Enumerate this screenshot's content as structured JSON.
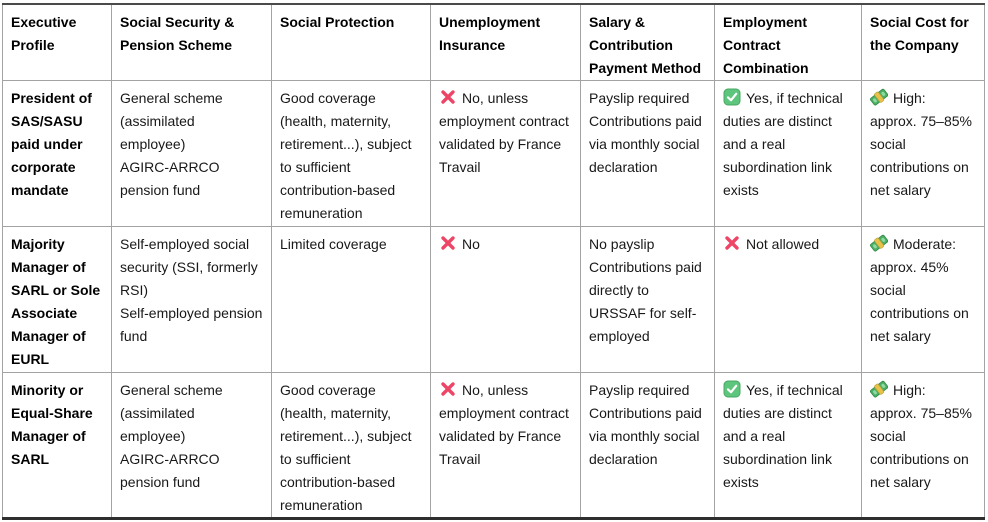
{
  "colors": {
    "grid_line": "#a3a3a3",
    "outer_top_border": "#4a4a4a",
    "outer_bottom_border": "#2e2e2e",
    "text": "#181818",
    "cross_icon": "#ed4566",
    "check_icon_fill": "#5ec57d",
    "check_icon_border": "#48a862",
    "money_icon_green": "#4caf63",
    "money_icon_band": "#e8c14b"
  },
  "table": {
    "headers": [
      "Executive Profile",
      "Social Security & Pension Scheme",
      "Social Protection",
      "Unemployment Insurance",
      "Salary & Contribution Payment Method",
      "Employment Contract Combination",
      "Social Cost for the Company"
    ],
    "rows": [
      {
        "profile": "President of SAS/SASU paid under corporate mandate",
        "cells": [
          {
            "icon": null,
            "paragraphs": [
              "General scheme (assimilated employee)",
              "AGIRC-ARRCO pension fund"
            ]
          },
          {
            "icon": null,
            "paragraphs": [
              "Good coverage (health, maternity, retirement...), subject to sufficient contribution-based remuneration"
            ]
          },
          {
            "icon": "cross",
            "paragraphs": [
              "No, unless employment contract validated by France Travail"
            ]
          },
          {
            "icon": null,
            "paragraphs": [
              "Payslip required",
              "Contributions paid via monthly social declaration"
            ]
          },
          {
            "icon": "check",
            "paragraphs": [
              "Yes, if technical duties are distinct and a real subordination link exists"
            ]
          },
          {
            "icon": "money",
            "paragraphs": [
              "High: approx. 75–85% social contributions on net salary"
            ]
          }
        ]
      },
      {
        "profile": "Majority Manager of SARL or Sole Associate Manager of EURL",
        "cells": [
          {
            "icon": null,
            "paragraphs": [
              "Self-employed social security (SSI, formerly RSI)",
              "Self-employed pension fund"
            ]
          },
          {
            "icon": null,
            "paragraphs": [
              "Limited coverage"
            ]
          },
          {
            "icon": "cross",
            "paragraphs": [
              "No"
            ]
          },
          {
            "icon": null,
            "paragraphs": [
              "No payslip",
              "Contributions paid directly to URSSAF for self-employed"
            ]
          },
          {
            "icon": "cross",
            "paragraphs": [
              "Not allowed"
            ]
          },
          {
            "icon": "money",
            "paragraphs": [
              "Moderate: approx. 45% social contributions on net salary"
            ]
          }
        ]
      },
      {
        "profile": "Minority or Equal-Share Manager of SARL",
        "cells": [
          {
            "icon": null,
            "paragraphs": [
              "General scheme (assimilated employee)",
              "AGIRC-ARRCO pension fund"
            ]
          },
          {
            "icon": null,
            "paragraphs": [
              "Good coverage (health, maternity, retirement...), subject to sufficient contribution-based remuneration"
            ]
          },
          {
            "icon": "cross",
            "paragraphs": [
              "No, unless employment contract validated by France Travail"
            ]
          },
          {
            "icon": null,
            "paragraphs": [
              "Payslip required",
              "Contributions paid via monthly social declaration"
            ]
          },
          {
            "icon": "check",
            "paragraphs": [
              "Yes, if technical duties are distinct and a real subordination link exists"
            ]
          },
          {
            "icon": "money",
            "paragraphs": [
              "High: approx. 75–85% social contributions on net salary"
            ]
          }
        ]
      }
    ]
  }
}
